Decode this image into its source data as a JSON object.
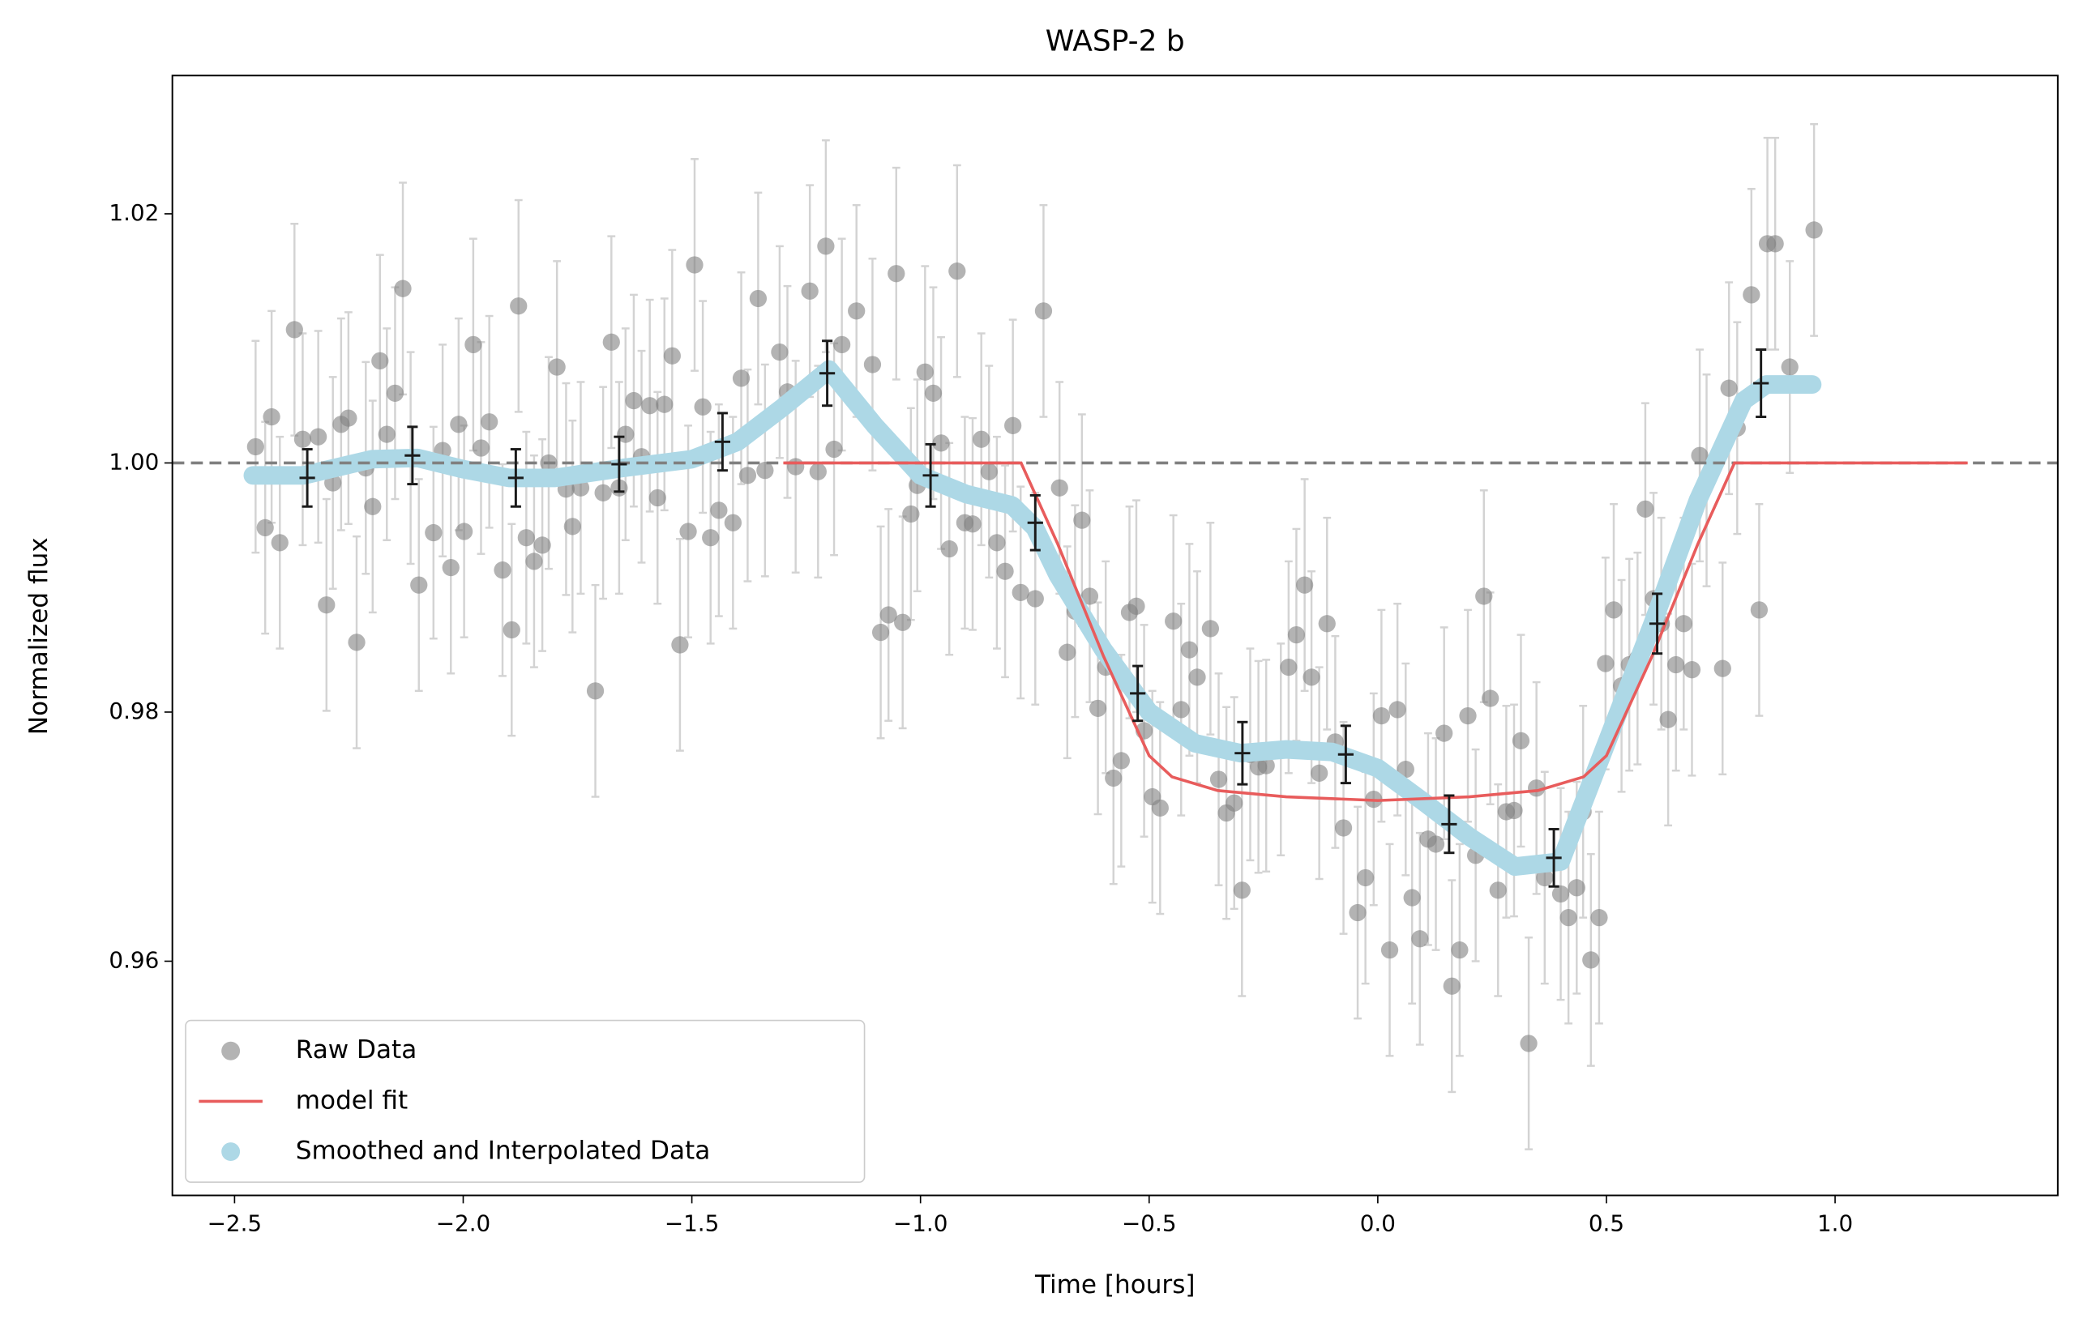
{
  "chart_data": {
    "type": "scatter",
    "title": "WASP-2 b",
    "xlabel": "Time [hours]",
    "ylabel": "Normalized flux",
    "xlim": [
      -2.636,
      1.487
    ],
    "ylim": [
      0.9412,
      1.0311
    ],
    "xticks": [
      {
        "value": -2.5,
        "label": "−2.5"
      },
      {
        "value": -2.0,
        "label": "−2.0"
      },
      {
        "value": -1.5,
        "label": "−1.5"
      },
      {
        "value": -1.0,
        "label": "−1.0"
      },
      {
        "value": -0.5,
        "label": "−0.5"
      },
      {
        "value": 0,
        "label": "0.0"
      },
      0.5,
      {
        "value": 1,
        "label": "1.0"
      }
    ],
    "yticks": [
      0.96,
      0.98,
      {
        "value": 1,
        "label": "1.00"
      },
      {
        "value": 1.02,
        "label": "1.02"
      }
    ],
    "hline": 1.0,
    "hline_color": "#808080",
    "legend": "lower left",
    "series": [
      {
        "name": "Raw Data",
        "type": "scatter",
        "color": "#808080",
        "error_color": "#d3d3d3",
        "yerr": 0.0085,
        "x": [
          -2.454,
          -2.433,
          -2.419,
          -2.401,
          -2.369,
          -2.351,
          -2.317,
          -2.299,
          -2.285,
          -2.267,
          -2.251,
          -2.233,
          -2.213,
          -2.198,
          -2.182,
          -2.167,
          -2.149,
          -2.132,
          -2.115,
          -2.097,
          -2.065,
          -2.045,
          -2.027,
          -2.01,
          -1.998,
          -1.978,
          -1.961,
          -1.943,
          -1.914,
          -1.894,
          -1.879,
          -1.862,
          -1.845,
          -1.827,
          -1.813,
          -1.795,
          -1.775,
          -1.761,
          -1.743,
          -1.711,
          -1.694,
          -1.676,
          -1.659,
          -1.645,
          -1.627,
          -1.61,
          -1.592,
          -1.575,
          -1.56,
          -1.543,
          -1.526,
          -1.508,
          -1.494,
          -1.476,
          -1.459,
          -1.441,
          -1.41,
          -1.392,
          -1.378,
          -1.355,
          -1.34,
          -1.308,
          -1.291,
          -1.273,
          -1.242,
          -1.224,
          -1.207,
          -1.189,
          -1.172,
          -1.14,
          -1.105,
          -1.087,
          -1.07,
          -1.053,
          -1.039,
          -1.021,
          -1.007,
          -0.99,
          -0.972,
          -0.955,
          -0.937,
          -0.92,
          -0.903,
          -0.886,
          -0.867,
          -0.85,
          -0.833,
          -0.815,
          -0.798,
          -0.781,
          -0.749,
          -0.731,
          -0.696,
          -0.679,
          -0.662,
          -0.647,
          -0.63,
          -0.612,
          -0.595,
          -0.578,
          -0.561,
          -0.543,
          -0.528,
          -0.511,
          -0.493,
          -0.476,
          -0.447,
          -0.43,
          -0.412,
          -0.395,
          -0.366,
          -0.348,
          -0.331,
          -0.314,
          -0.297,
          -0.279,
          -0.261,
          -0.244,
          -0.212,
          -0.195,
          -0.178,
          -0.16,
          -0.145,
          -0.128,
          -0.111,
          -0.093,
          -0.075,
          -0.044,
          -0.027,
          -0.009,
          0.008,
          0.026,
          0.043,
          0.061,
          0.075,
          0.092,
          0.11,
          0.127,
          0.145,
          0.162,
          0.179,
          0.197,
          0.214,
          0.232,
          0.246,
          0.263,
          0.281,
          0.298,
          0.313,
          0.33,
          0.347,
          0.365,
          0.4,
          0.417,
          0.435,
          0.449,
          0.466,
          0.484,
          0.498,
          0.516,
          0.533,
          0.55,
          0.568,
          0.585,
          0.603,
          0.62,
          0.635,
          0.652,
          0.669,
          0.687,
          0.704,
          0.719,
          0.754,
          0.768,
          0.786,
          0.817,
          0.834,
          0.852,
          0.869,
          0.901,
          0.954
        ],
        "values": [
          1.0013,
          0.9948,
          1.0037,
          0.9936,
          1.0107,
          1.0019,
          1.0021,
          0.9886,
          0.9984,
          1.0031,
          1.0036,
          0.9856,
          0.9996,
          0.9965,
          1.0082,
          1.0023,
          1.0056,
          1.014,
          1.0004,
          0.9902,
          0.9944,
          1.001,
          0.9916,
          1.0031,
          0.9945,
          1.0095,
          1.0012,
          1.0033,
          0.9914,
          0.9866,
          1.0126,
          0.994,
          0.9921,
          0.9934,
          1.0,
          1.0077,
          0.9979,
          0.9949,
          0.998,
          0.9817,
          0.9976,
          1.0097,
          0.998,
          1.0023,
          1.005,
          1.0005,
          1.0046,
          0.9972,
          1.0047,
          1.0086,
          0.9854,
          0.9945,
          1.0159,
          1.0045,
          0.994,
          0.9962,
          0.9952,
          1.0068,
          0.999,
          1.0132,
          0.9994,
          1.0089,
          1.0057,
          0.9997,
          1.0138,
          0.9993,
          1.0174,
          1.0011,
          1.0095,
          1.0122,
          1.0079,
          0.9864,
          0.9878,
          1.0152,
          0.9872,
          0.9959,
          0.9982,
          1.0073,
          1.0056,
          1.0016,
          0.9931,
          1.0154,
          0.9952,
          0.9951,
          1.0019,
          0.9993,
          0.9936,
          0.9913,
          1.003,
          0.9896,
          0.9891,
          1.0122,
          0.998,
          0.9848,
          0.9881,
          0.9954,
          0.9893,
          0.9803,
          0.9836,
          0.9747,
          0.9761,
          0.988,
          0.9885,
          0.9785,
          0.9732,
          0.9723,
          0.9873,
          0.9802,
          0.985,
          0.9828,
          0.9867,
          0.9746,
          0.9719,
          0.9727,
          0.9657,
          0.9766,
          0.9756,
          0.9757,
          0.977,
          0.9836,
          0.9862,
          0.9902,
          0.9828,
          0.9751,
          0.9871,
          0.9776,
          0.9707,
          0.9639,
          0.9667,
          0.973,
          0.9797,
          0.9609,
          0.9802,
          0.9754,
          0.9651,
          0.9618,
          0.9698,
          0.9694,
          0.9783,
          0.958,
          0.9609,
          0.9797,
          0.9685,
          0.9893,
          0.9811,
          0.9657,
          0.972,
          0.9721,
          0.9777,
          0.9534,
          0.9739,
          0.9667,
          0.9654,
          0.9635,
          0.9659,
          0.972,
          0.9601,
          0.9635,
          0.9839,
          0.9882,
          0.9821,
          0.9838,
          0.9843,
          0.9963,
          0.9891,
          0.9871,
          0.9794,
          0.9838,
          0.9871,
          0.9834,
          1.0006,
          0.9986,
          0.9835,
          1.006,
          1.0028,
          1.0135,
          0.9882,
          1.0176,
          1.0176,
          1.0077,
          1.0187
        ]
      },
      {
        "name": "model fit",
        "type": "line",
        "color": "#e85c5c",
        "x": [
          -1.3,
          -0.78,
          -0.7,
          -0.6,
          -0.5,
          -0.45,
          -0.35,
          -0.2,
          0,
          0.2,
          0.35,
          0.45,
          0.5,
          0.6,
          0.7,
          0.78,
          1.29
        ],
        "values": [
          1.0,
          1.0,
          0.9935,
          0.9845,
          0.9765,
          0.9748,
          0.9737,
          0.9732,
          0.9729,
          0.9732,
          0.9737,
          0.9748,
          0.9765,
          0.9845,
          0.9935,
          1.0,
          1.0
        ]
      },
      {
        "name": "Smoothed and Interpolated Data",
        "type": "band-line",
        "color": "#add8e6",
        "x": [
          -2.46,
          -2.35,
          -2.2,
          -2.1,
          -2.0,
          -1.9,
          -1.8,
          -1.65,
          -1.5,
          -1.4,
          -1.3,
          -1.2,
          -1.1,
          -1.0,
          -0.9,
          -0.8,
          -0.75,
          -0.7,
          -0.6,
          -0.5,
          -0.4,
          -0.3,
          -0.2,
          -0.1,
          0.0,
          0.1,
          0.2,
          0.3,
          0.4,
          0.5,
          0.6,
          0.7,
          0.8,
          0.85,
          0.95
        ],
        "values": [
          0.999,
          0.999,
          1.0003,
          1.0004,
          0.9995,
          0.9988,
          0.9988,
          0.9996,
          1.0003,
          1.0017,
          1.0045,
          1.0075,
          1.003,
          0.999,
          0.9975,
          0.9966,
          0.9948,
          0.991,
          0.985,
          0.98,
          0.9775,
          0.9767,
          0.977,
          0.9768,
          0.9755,
          0.9728,
          0.97,
          0.9676,
          0.968,
          0.9775,
          0.987,
          0.997,
          1.005,
          1.0063,
          1.0063
        ]
      }
    ],
    "binned": {
      "color": "#1a1a1a",
      "xerr": 0.017,
      "x": [
        -2.341,
        -2.111,
        -1.885,
        -1.659,
        -1.433,
        -1.204,
        -0.978,
        -0.749,
        -0.525,
        -0.296,
        -0.07,
        0.156,
        0.385,
        0.611,
        0.838
      ],
      "values": [
        0.9988,
        1.0006,
        0.9988,
        0.9999,
        1.0017,
        1.0072,
        0.999,
        0.9952,
        0.9815,
        0.9767,
        0.9766,
        0.971,
        0.9683,
        0.9871,
        1.0064
      ],
      "yerr": [
        0.0023,
        0.0023,
        0.0023,
        0.0022,
        0.0023,
        0.0026,
        0.0025,
        0.0022,
        0.0022,
        0.0025,
        0.0023,
        0.0023,
        0.0023,
        0.0024,
        0.0027
      ]
    }
  }
}
